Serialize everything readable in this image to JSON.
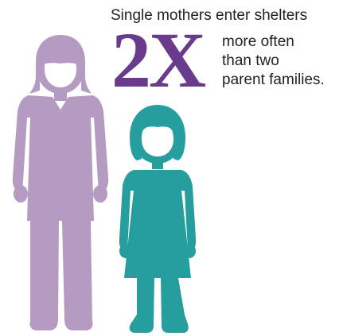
{
  "headline": "Single mothers enter shelters",
  "multiplier": "2X",
  "detail_lines": [
    "more often",
    "than two",
    "parent families."
  ],
  "colors": {
    "mother": "#b59bc1",
    "child": "#259e9d",
    "multiplier": "#6a3b8c",
    "text": "#222222"
  },
  "icons": {
    "mother": "woman-figure-icon",
    "child": "girl-figure-icon"
  }
}
